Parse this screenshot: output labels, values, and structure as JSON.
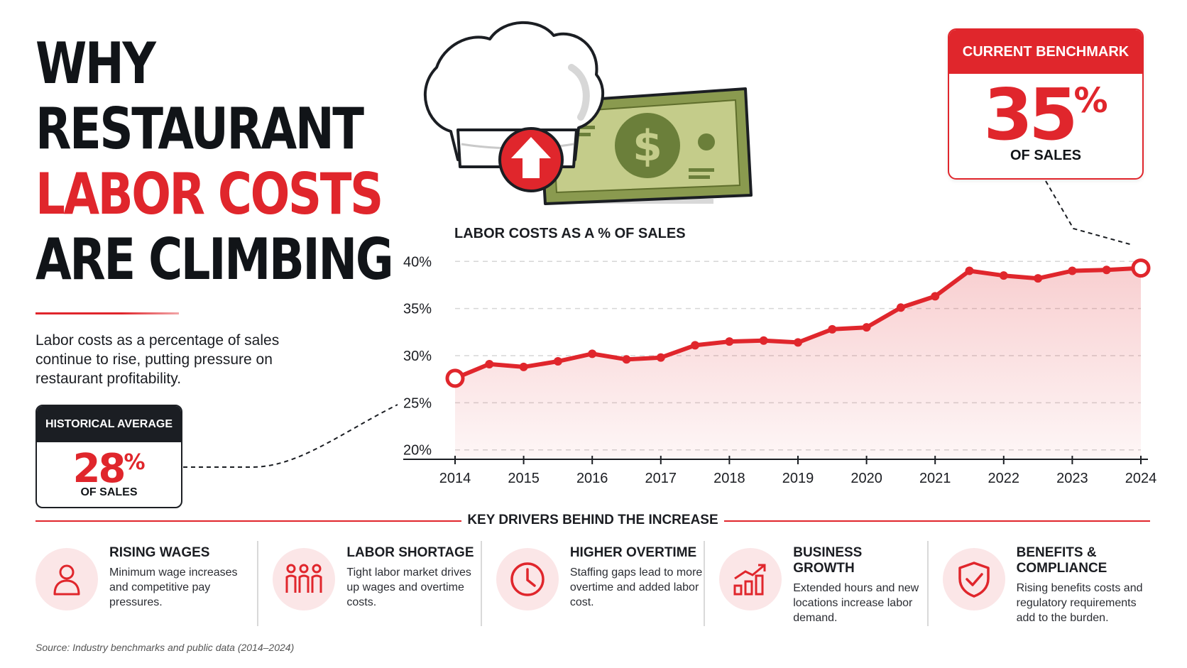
{
  "title": {
    "line1": "WHY",
    "line2": "RESTAURANT",
    "line3": "LABOR COSTS",
    "line4": "ARE CLIMBING"
  },
  "subtitle": "Labor costs as a percentage of sales continue to rise, putting pressure on restaurant profitability.",
  "historical": {
    "heading": "HISTORICAL AVERAGE",
    "value": "28",
    "unit": "%",
    "caption": "OF SALES"
  },
  "benchmark": {
    "heading": "CURRENT BENCHMARK",
    "value": "35",
    "unit": "%",
    "caption": "OF SALES"
  },
  "colors": {
    "accent": "#e0262c",
    "dark": "#1b1e23",
    "money": "#6b7f3a"
  },
  "chart_data": {
    "type": "line",
    "title": "LABOR COSTS AS A % OF SALES",
    "xlabel": "",
    "ylabel": "",
    "xlim": [
      2014,
      2024
    ],
    "ylim": [
      19,
      41
    ],
    "yticks": [
      20,
      25,
      30,
      35,
      40
    ],
    "ytick_labels": [
      "20%",
      "25%",
      "30%",
      "35%",
      "40%"
    ],
    "xtick_labels": [
      "2014",
      "2015",
      "2016",
      "2017",
      "2018",
      "2019",
      "2020",
      "2021",
      "2022",
      "2023",
      "2024"
    ],
    "grid": "horizontal dashed",
    "series": [
      {
        "x": [
          2014,
          2014.5,
          2015,
          2015.5,
          2016,
          2016.5,
          2017,
          2017.5,
          2018,
          2018.5,
          2019,
          2019.5,
          2020,
          2020.5,
          2021,
          2021.5,
          2022,
          2022.5,
          2023,
          2023.5,
          2024
        ],
        "values": [
          27.6,
          29.1,
          28.8,
          29.4,
          30.2,
          29.6,
          29.8,
          31.1,
          31.5,
          31.6,
          31.4,
          32.8,
          33.0,
          35.1,
          36.3,
          39.0,
          38.5,
          38.2,
          39.0,
          39.1,
          39.3
        ]
      }
    ]
  },
  "drivers": {
    "heading": "KEY DRIVERS BEHIND THE INCREASE",
    "items": [
      {
        "title": "RISING WAGES",
        "text": "Minimum wage increases and competitive pay pressures.",
        "icon": "person-icon"
      },
      {
        "title": "LABOR SHORTAGE",
        "text": "Tight labor market drives up wages and overtime costs.",
        "icon": "group-icon"
      },
      {
        "title": "HIGHER OVERTIME",
        "text": "Staffing gaps lead to more overtime and added labor cost.",
        "icon": "clock-icon"
      },
      {
        "title": "BUSINESS GROWTH",
        "text": "Extended hours and new locations increase labor demand.",
        "icon": "growth-chart-icon"
      },
      {
        "title": "BENEFITS & COMPLIANCE",
        "text": "Rising benefits costs and regulatory requirements add to the burden.",
        "icon": "shield-check-icon"
      }
    ]
  },
  "source": "Source: Industry benchmarks and public data (2014–2024)"
}
